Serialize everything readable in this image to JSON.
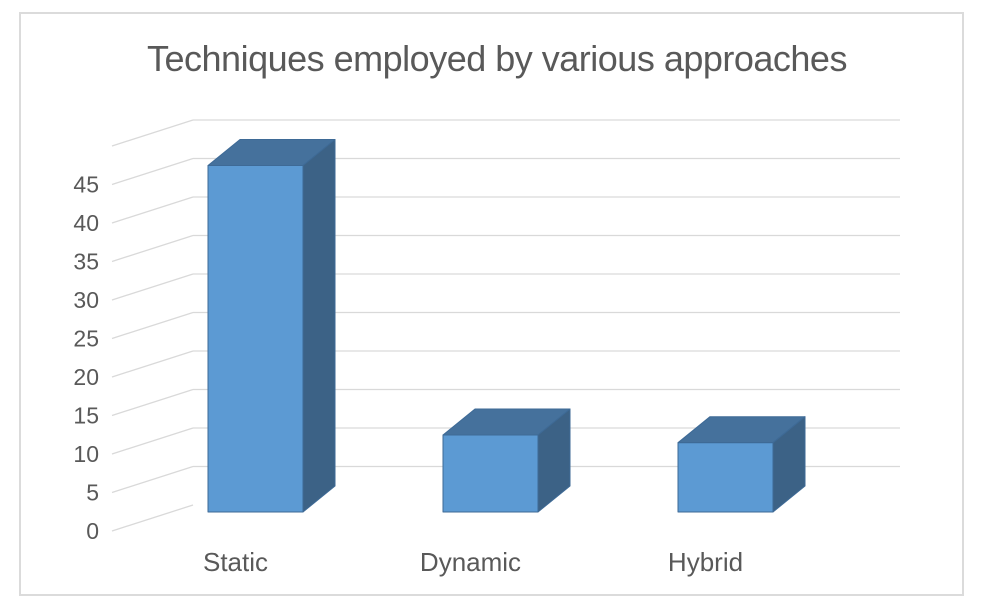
{
  "window": {
    "background": "#FFFFFF",
    "frame_border_color": "#DBDBDB"
  },
  "chart_data": {
    "type": "bar",
    "projection": "3d-column",
    "title": "Techniques employed by various approaches",
    "categories": [
      "Static",
      "Dynamic",
      "Hybrid"
    ],
    "values": [
      45,
      10,
      9
    ],
    "series": [
      {
        "name": "Techniques",
        "values": [
          45,
          10,
          9
        ]
      }
    ],
    "xlabel": "",
    "ylabel": "",
    "ylim": [
      0,
      50
    ],
    "ytick_step": 5,
    "ytick_labels": [
      "0",
      "5",
      "10",
      "15",
      "20",
      "25",
      "30",
      "35",
      "40",
      "45"
    ],
    "grid": true,
    "legend": false,
    "colors": {
      "bar_front": "#5C9AD3",
      "bar_top": "#45719C",
      "bar_side": "#3C6286",
      "bar_edge": "#3E6A96",
      "gridline": "#D9D9D9",
      "text": "#595959",
      "title_text": "#595959"
    }
  }
}
